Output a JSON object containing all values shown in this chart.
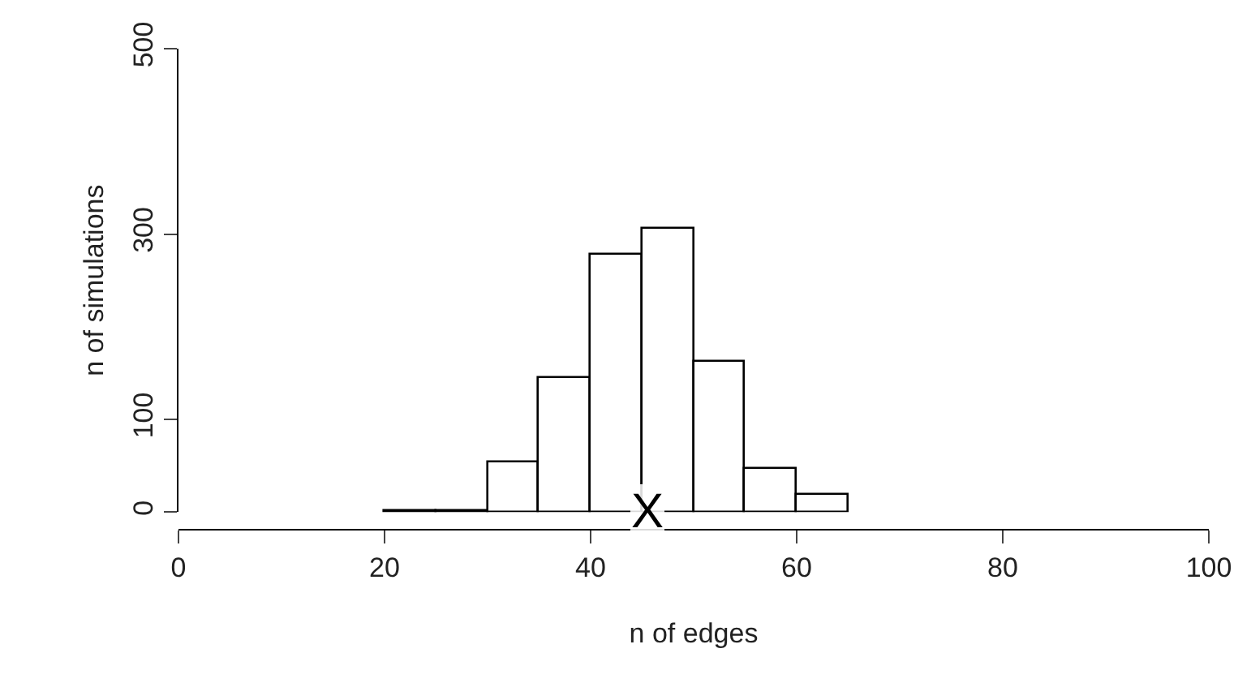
{
  "chart_data": {
    "type": "histogram",
    "xlabel": "n of edges",
    "ylabel": "n of simulations",
    "bins": [
      20,
      25,
      30,
      35,
      40,
      45,
      50,
      55,
      60,
      65
    ],
    "values": [
      1,
      1,
      53,
      145,
      277,
      306,
      162,
      47,
      18
    ],
    "color": "#ffffff",
    "xlim": [
      0,
      100
    ],
    "xticks": [
      0,
      20,
      40,
      60,
      80,
      100
    ],
    "ylim": [
      0,
      500
    ],
    "yticks": [
      0,
      100,
      300,
      500
    ],
    "annotations": [
      {
        "text": "X",
        "x": 45.5,
        "y": 0
      }
    ]
  }
}
